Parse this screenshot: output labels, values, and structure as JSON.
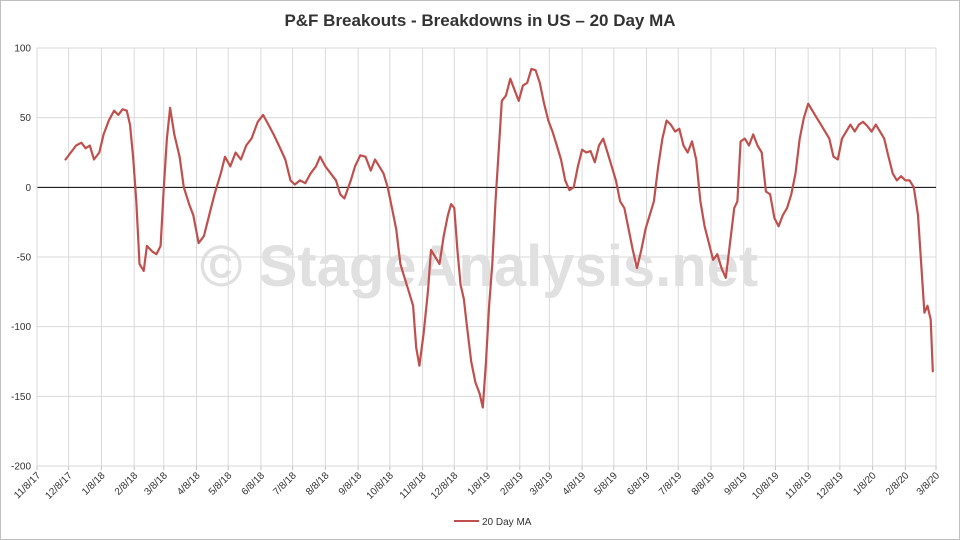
{
  "chart_data": {
    "type": "line",
    "title": "P&F Breakouts - Breakdowns in US – 20 Day MA",
    "watermark": "© StageAnalysis.net",
    "ylim": [
      -200,
      100
    ],
    "yticks": [
      100,
      50,
      0,
      -50,
      -100,
      -150,
      -200
    ],
    "xlim": [
      "2017-11-08",
      "2020-03-08"
    ],
    "xticks": [
      "11/8/17",
      "12/8/17",
      "1/8/18",
      "2/8/18",
      "3/8/18",
      "4/8/18",
      "5/8/18",
      "6/8/18",
      "7/8/18",
      "8/8/18",
      "9/8/18",
      "10/8/18",
      "11/8/18",
      "12/8/18",
      "1/8/19",
      "2/8/19",
      "3/8/19",
      "4/8/19",
      "5/8/19",
      "6/8/19",
      "7/8/19",
      "8/8/19",
      "9/8/19",
      "10/8/19",
      "11/8/19",
      "12/8/19",
      "1/8/20",
      "2/8/20",
      "3/8/20"
    ],
    "grid": true,
    "legend_position": "bottom",
    "series": [
      {
        "name": "20 Day MA",
        "color": "#c0504d",
        "points": [
          [
            "2017-12-05",
            20
          ],
          [
            "2017-12-10",
            25
          ],
          [
            "2017-12-15",
            30
          ],
          [
            "2017-12-20",
            32
          ],
          [
            "2017-12-24",
            28
          ],
          [
            "2017-12-28",
            30
          ],
          [
            "2018-01-01",
            20
          ],
          [
            "2018-01-06",
            25
          ],
          [
            "2018-01-10",
            38
          ],
          [
            "2018-01-15",
            48
          ],
          [
            "2018-01-20",
            55
          ],
          [
            "2018-01-24",
            52
          ],
          [
            "2018-01-28",
            56
          ],
          [
            "2018-02-01",
            55
          ],
          [
            "2018-02-04",
            45
          ],
          [
            "2018-02-07",
            22
          ],
          [
            "2018-02-10",
            -10
          ],
          [
            "2018-02-13",
            -55
          ],
          [
            "2018-02-17",
            -60
          ],
          [
            "2018-02-20",
            -42
          ],
          [
            "2018-02-25",
            -46
          ],
          [
            "2018-03-01",
            -48
          ],
          [
            "2018-03-05",
            -42
          ],
          [
            "2018-03-08",
            0
          ],
          [
            "2018-03-11",
            35
          ],
          [
            "2018-03-14",
            57
          ],
          [
            "2018-03-18",
            38
          ],
          [
            "2018-03-23",
            22
          ],
          [
            "2018-03-27",
            0
          ],
          [
            "2018-04-01",
            -12
          ],
          [
            "2018-04-05",
            -20
          ],
          [
            "2018-04-10",
            -40
          ],
          [
            "2018-04-15",
            -35
          ],
          [
            "2018-04-20",
            -20
          ],
          [
            "2018-04-25",
            -5
          ],
          [
            "2018-05-01",
            10
          ],
          [
            "2018-05-05",
            22
          ],
          [
            "2018-05-10",
            15
          ],
          [
            "2018-05-15",
            25
          ],
          [
            "2018-05-20",
            20
          ],
          [
            "2018-05-25",
            30
          ],
          [
            "2018-05-30",
            35
          ],
          [
            "2018-06-05",
            47
          ],
          [
            "2018-06-10",
            52
          ],
          [
            "2018-06-15",
            45
          ],
          [
            "2018-06-20",
            38
          ],
          [
            "2018-06-25",
            30
          ],
          [
            "2018-07-01",
            20
          ],
          [
            "2018-07-06",
            5
          ],
          [
            "2018-07-10",
            2
          ],
          [
            "2018-07-15",
            5
          ],
          [
            "2018-07-20",
            3
          ],
          [
            "2018-07-25",
            10
          ],
          [
            "2018-07-30",
            15
          ],
          [
            "2018-08-03",
            22
          ],
          [
            "2018-08-08",
            15
          ],
          [
            "2018-08-13",
            10
          ],
          [
            "2018-08-18",
            5
          ],
          [
            "2018-08-22",
            -5
          ],
          [
            "2018-08-26",
            -8
          ],
          [
            "2018-09-01",
            5
          ],
          [
            "2018-09-05",
            15
          ],
          [
            "2018-09-10",
            23
          ],
          [
            "2018-09-15",
            22
          ],
          [
            "2018-09-20",
            12
          ],
          [
            "2018-09-24",
            20
          ],
          [
            "2018-09-28",
            15
          ],
          [
            "2018-10-02",
            10
          ],
          [
            "2018-10-06",
            0
          ],
          [
            "2018-10-10",
            -15
          ],
          [
            "2018-10-14",
            -30
          ],
          [
            "2018-10-18",
            -55
          ],
          [
            "2018-10-22",
            -65
          ],
          [
            "2018-10-26",
            -75
          ],
          [
            "2018-10-30",
            -85
          ],
          [
            "2018-11-02",
            -115
          ],
          [
            "2018-11-05",
            -128
          ],
          [
            "2018-11-09",
            -105
          ],
          [
            "2018-11-13",
            -75
          ],
          [
            "2018-11-16",
            -45
          ],
          [
            "2018-11-20",
            -50
          ],
          [
            "2018-11-24",
            -55
          ],
          [
            "2018-11-28",
            -35
          ],
          [
            "2018-12-02",
            -20
          ],
          [
            "2018-12-05",
            -12
          ],
          [
            "2018-12-08",
            -15
          ],
          [
            "2018-12-11",
            -45
          ],
          [
            "2018-12-14",
            -70
          ],
          [
            "2018-12-17",
            -80
          ],
          [
            "2018-12-20",
            -100
          ],
          [
            "2018-12-24",
            -125
          ],
          [
            "2018-12-28",
            -140
          ],
          [
            "2019-01-01",
            -148
          ],
          [
            "2019-01-04",
            -158
          ],
          [
            "2019-01-07",
            -125
          ],
          [
            "2019-01-10",
            -85
          ],
          [
            "2019-01-13",
            -55
          ],
          [
            "2019-01-16",
            -10
          ],
          [
            "2019-01-19",
            25
          ],
          [
            "2019-01-22",
            62
          ],
          [
            "2019-01-26",
            66
          ],
          [
            "2019-01-30",
            78
          ],
          [
            "2019-02-03",
            70
          ],
          [
            "2019-02-07",
            62
          ],
          [
            "2019-02-11",
            73
          ],
          [
            "2019-02-15",
            75
          ],
          [
            "2019-02-19",
            85
          ],
          [
            "2019-02-23",
            84
          ],
          [
            "2019-02-27",
            75
          ],
          [
            "2019-03-03",
            60
          ],
          [
            "2019-03-07",
            48
          ],
          [
            "2019-03-11",
            40
          ],
          [
            "2019-03-15",
            30
          ],
          [
            "2019-03-19",
            20
          ],
          [
            "2019-03-23",
            5
          ],
          [
            "2019-03-27",
            -2
          ],
          [
            "2019-03-31",
            0
          ],
          [
            "2019-04-04",
            15
          ],
          [
            "2019-04-08",
            27
          ],
          [
            "2019-04-12",
            25
          ],
          [
            "2019-04-16",
            26
          ],
          [
            "2019-04-20",
            18
          ],
          [
            "2019-04-24",
            30
          ],
          [
            "2019-04-28",
            35
          ],
          [
            "2019-05-02",
            25
          ],
          [
            "2019-05-06",
            15
          ],
          [
            "2019-05-10",
            5
          ],
          [
            "2019-05-14",
            -10
          ],
          [
            "2019-05-18",
            -15
          ],
          [
            "2019-05-22",
            -30
          ],
          [
            "2019-05-26",
            -45
          ],
          [
            "2019-05-30",
            -58
          ],
          [
            "2019-06-03",
            -45
          ],
          [
            "2019-06-07",
            -30
          ],
          [
            "2019-06-11",
            -20
          ],
          [
            "2019-06-15",
            -10
          ],
          [
            "2019-06-19",
            15
          ],
          [
            "2019-06-23",
            35
          ],
          [
            "2019-06-27",
            48
          ],
          [
            "2019-07-01",
            45
          ],
          [
            "2019-07-05",
            40
          ],
          [
            "2019-07-09",
            42
          ],
          [
            "2019-07-13",
            30
          ],
          [
            "2019-07-17",
            25
          ],
          [
            "2019-07-21",
            33
          ],
          [
            "2019-07-25",
            20
          ],
          [
            "2019-07-29",
            -10
          ],
          [
            "2019-08-02",
            -28
          ],
          [
            "2019-08-06",
            -40
          ],
          [
            "2019-08-10",
            -52
          ],
          [
            "2019-08-14",
            -48
          ],
          [
            "2019-08-18",
            -58
          ],
          [
            "2019-08-22",
            -65
          ],
          [
            "2019-08-26",
            -40
          ],
          [
            "2019-08-30",
            -15
          ],
          [
            "2019-09-02",
            -10
          ],
          [
            "2019-09-05",
            33
          ],
          [
            "2019-09-09",
            35
          ],
          [
            "2019-09-13",
            30
          ],
          [
            "2019-09-17",
            38
          ],
          [
            "2019-09-21",
            30
          ],
          [
            "2019-09-25",
            25
          ],
          [
            "2019-09-29",
            -3
          ],
          [
            "2019-10-03",
            -5
          ],
          [
            "2019-10-07",
            -22
          ],
          [
            "2019-10-11",
            -28
          ],
          [
            "2019-10-15",
            -20
          ],
          [
            "2019-10-19",
            -15
          ],
          [
            "2019-10-23",
            -5
          ],
          [
            "2019-10-27",
            10
          ],
          [
            "2019-10-31",
            35
          ],
          [
            "2019-11-04",
            50
          ],
          [
            "2019-11-08",
            60
          ],
          [
            "2019-11-12",
            55
          ],
          [
            "2019-11-16",
            50
          ],
          [
            "2019-11-20",
            45
          ],
          [
            "2019-11-24",
            40
          ],
          [
            "2019-11-28",
            35
          ],
          [
            "2019-12-02",
            22
          ],
          [
            "2019-12-06",
            20
          ],
          [
            "2019-12-10",
            35
          ],
          [
            "2019-12-14",
            40
          ],
          [
            "2019-12-18",
            45
          ],
          [
            "2019-12-22",
            40
          ],
          [
            "2019-12-26",
            45
          ],
          [
            "2019-12-30",
            47
          ],
          [
            "2020-01-03",
            44
          ],
          [
            "2020-01-07",
            40
          ],
          [
            "2020-01-11",
            45
          ],
          [
            "2020-01-15",
            40
          ],
          [
            "2020-01-19",
            35
          ],
          [
            "2020-01-23",
            22
          ],
          [
            "2020-01-27",
            10
          ],
          [
            "2020-01-31",
            5
          ],
          [
            "2020-02-04",
            8
          ],
          [
            "2020-02-08",
            5
          ],
          [
            "2020-02-12",
            5
          ],
          [
            "2020-02-16",
            0
          ],
          [
            "2020-02-20",
            -20
          ],
          [
            "2020-02-23",
            -55
          ],
          [
            "2020-02-26",
            -90
          ],
          [
            "2020-02-29",
            -85
          ],
          [
            "2020-03-03",
            -95
          ],
          [
            "2020-03-05",
            -132
          ]
        ]
      }
    ]
  }
}
